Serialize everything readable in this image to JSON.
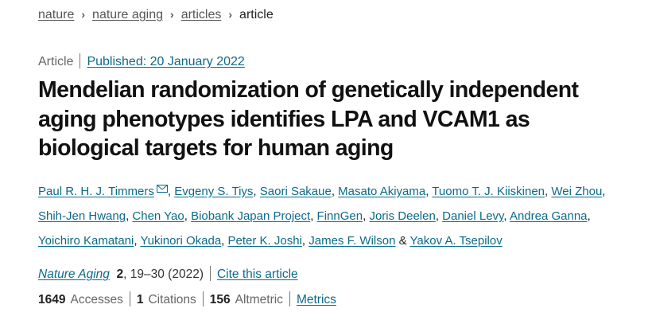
{
  "breadcrumb": {
    "items": [
      "nature",
      "nature aging",
      "articles"
    ],
    "current": "article"
  },
  "meta": {
    "type": "Article",
    "published": "Published: 20 January 2022"
  },
  "title_lines": [
    "Mendelian randomization of genetically independent",
    "aging phenotypes identifies LPA and VCAM1 as",
    "biological targets for human aging"
  ],
  "authors": {
    "line1": [
      "Paul R. H. J. Timmers",
      "Evgeny S. Tiys",
      "Saori Sakaue",
      "Masato Akiyama",
      "Tuomo T. J. Kiiskinen",
      "Wei Zhou"
    ],
    "line2": [
      "Shih-Jen Hwang",
      "Chen Yao",
      "Biobank Japan Project",
      "FinnGen",
      "Joris Deelen",
      "Daniel Levy",
      "Andrea Ganna"
    ],
    "line3": [
      "Yoichiro Kamatani",
      "Yukinori Okada",
      "Peter K. Joshi",
      "James F. Wilson"
    ],
    "last": "Yakov A. Tsepilov",
    "mail_icon": "envelope-icon"
  },
  "journal": {
    "name": "Nature Aging",
    "volume": "2",
    "pages": ", 19–30 (2022)",
    "cite": "Cite this article"
  },
  "stats": {
    "accesses": "1649",
    "accesses_label": "Accesses",
    "citations": "1",
    "citations_label": "Citations",
    "altmetric": "156",
    "altmetric_label": "Altmetric",
    "metrics": "Metrics"
  },
  "colors": {
    "link": "#0b6a8a"
  }
}
